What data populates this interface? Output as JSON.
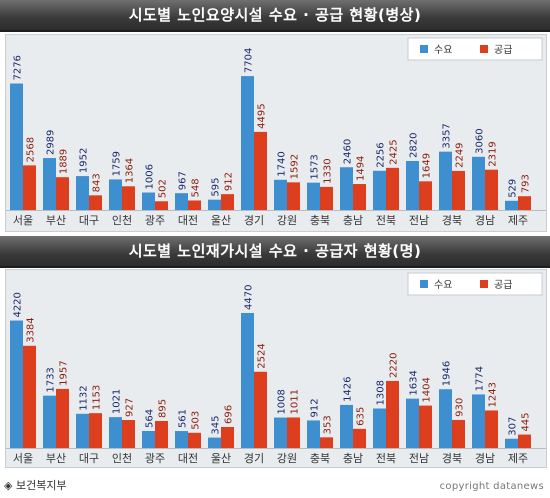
{
  "chart_data": [
    {
      "type": "bar",
      "title": "시도별 노인요양시설 수요 · 공급 현황(병상)",
      "categories": [
        "서울",
        "부산",
        "대구",
        "인천",
        "광주",
        "대전",
        "울산",
        "경기",
        "강원",
        "충북",
        "충남",
        "전북",
        "전남",
        "경북",
        "경남",
        "제주"
      ],
      "series": [
        {
          "name": "수요",
          "color": "#3d8fd0",
          "values": [
            7276,
            2989,
            1952,
            1759,
            1006,
            967,
            595,
            7704,
            1740,
            1573,
            2460,
            2256,
            2820,
            3357,
            3060,
            529
          ]
        },
        {
          "name": "공급",
          "color": "#dd3f1e",
          "values": [
            2568,
            1889,
            843,
            1364,
            502,
            548,
            912,
            4495,
            1592,
            1330,
            1494,
            2425,
            1649,
            2249,
            2319,
            793
          ]
        }
      ],
      "ylim": [
        0,
        8400
      ],
      "legend": "top-right"
    },
    {
      "type": "bar",
      "title": "시도별 노인재가시설 수요 · 공급자 현황(명)",
      "categories": [
        "서울",
        "부산",
        "대구",
        "인천",
        "광주",
        "대전",
        "울산",
        "경기",
        "강원",
        "충북",
        "충남",
        "전북",
        "전남",
        "경북",
        "경남",
        "제주"
      ],
      "series": [
        {
          "name": "수요",
          "color": "#3d8fd0",
          "values": [
            4220,
            1733,
            1132,
            1021,
            564,
            561,
            345,
            4470,
            1008,
            912,
            1426,
            1308,
            1634,
            1946,
            1774,
            307
          ]
        },
        {
          "name": "공급",
          "color": "#dd3f1e",
          "values": [
            3384,
            1957,
            1153,
            927,
            895,
            503,
            696,
            2524,
            1011,
            353,
            635,
            2220,
            1404,
            930,
            1243,
            445
          ]
        }
      ],
      "ylim": [
        0,
        4900
      ],
      "legend": "top-right"
    }
  ],
  "footer": {
    "source": "◈ 보건복지부",
    "copyright": "copyright datanews"
  }
}
